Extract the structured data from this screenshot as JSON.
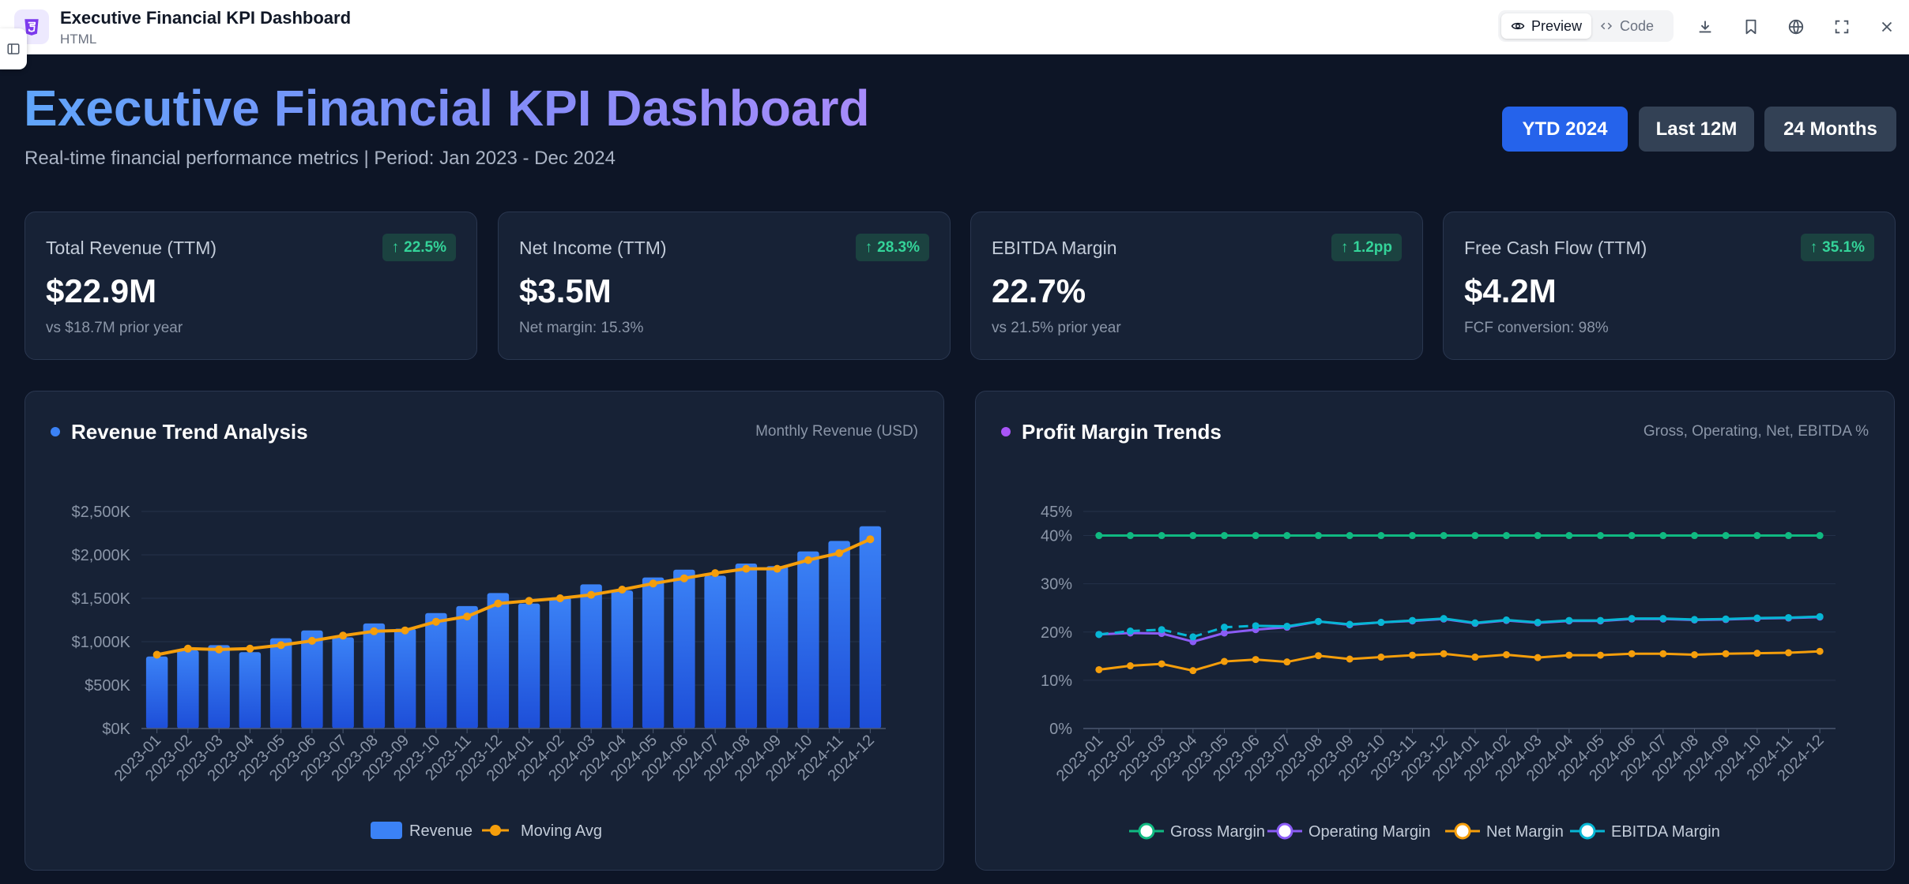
{
  "app": {
    "title": "Executive Financial KPI Dashboard",
    "subtitle": "HTML",
    "view_tabs": [
      {
        "label": "Preview",
        "active": true
      },
      {
        "label": "Code",
        "active": false
      }
    ],
    "tool_icons": [
      "download-icon",
      "bookmark-icon",
      "globe-icon",
      "fullscreen-icon",
      "close-icon"
    ]
  },
  "header": {
    "title": "Executive Financial KPI Dashboard",
    "subtitle": "Real-time financial performance metrics | Period: Jan 2023 - Dec 2024",
    "periods": [
      {
        "label": "YTD 2024",
        "active": true
      },
      {
        "label": "Last 12M",
        "active": false
      },
      {
        "label": "24 Months",
        "active": false
      }
    ]
  },
  "kpis": [
    {
      "label": "Total Revenue (TTM)",
      "value": "$22.9M",
      "change": "22.5%",
      "note": "vs $18.7M prior year"
    },
    {
      "label": "Net Income (TTM)",
      "value": "$3.5M",
      "change": "28.3%",
      "note": "Net margin: 15.3%"
    },
    {
      "label": "EBITDA Margin",
      "value": "22.7%",
      "change": "1.2pp",
      "note": "vs 21.5% prior year"
    },
    {
      "label": "Free Cash Flow (TTM)",
      "value": "$4.2M",
      "change": "35.1%",
      "note": "FCF conversion: 98%"
    }
  ],
  "colors": {
    "accent_blue": "#2563eb",
    "bar": "#3b82f6",
    "moving_avg": "#f59e0b",
    "gross": "#10b981",
    "operating": "#8b5cf6",
    "net": "#f59e0b",
    "ebitda": "#06b6d4",
    "positive": "#34d399"
  },
  "panels": {
    "revenue": {
      "title": "Revenue Trend Analysis",
      "subtitle": "Monthly Revenue (USD)"
    },
    "margins": {
      "title": "Profit Margin Trends",
      "subtitle": "Gross, Operating, Net, EBITDA %"
    }
  },
  "chart_data": [
    {
      "type": "bar",
      "title": "Revenue Trend Analysis",
      "subtitle": "Monthly Revenue (USD)",
      "categories": [
        "2023-01",
        "2023-02",
        "2023-03",
        "2023-04",
        "2023-05",
        "2023-06",
        "2023-07",
        "2023-08",
        "2023-09",
        "2023-10",
        "2023-11",
        "2023-12",
        "2024-01",
        "2024-02",
        "2024-03",
        "2024-04",
        "2024-05",
        "2024-06",
        "2024-07",
        "2024-08",
        "2024-09",
        "2024-10",
        "2024-11",
        "2024-12"
      ],
      "ylim": [
        0,
        2500
      ],
      "y_ticks": [
        0,
        500,
        1000,
        1500,
        2000,
        2500
      ],
      "y_tick_labels": [
        "$0K",
        "$500K",
        "$1,000K",
        "$1,500K",
        "$2,000K",
        "$2,500K"
      ],
      "legend_position": "bottom",
      "series": [
        {
          "name": "Revenue",
          "type": "bar",
          "values": [
            830,
            900,
            960,
            880,
            1040,
            1130,
            1050,
            1210,
            1150,
            1330,
            1410,
            1560,
            1440,
            1510,
            1660,
            1590,
            1740,
            1830,
            1760,
            1900,
            1870,
            2040,
            2160,
            2330
          ]
        },
        {
          "name": "Moving Avg",
          "type": "line",
          "values": [
            850,
            920,
            910,
            920,
            960,
            1010,
            1070,
            1120,
            1130,
            1230,
            1290,
            1440,
            1470,
            1500,
            1540,
            1600,
            1670,
            1730,
            1790,
            1840,
            1840,
            1940,
            2020,
            2180
          ]
        }
      ]
    },
    {
      "type": "line",
      "title": "Profit Margin Trends",
      "subtitle": "Gross, Operating, Net, EBITDA %",
      "categories": [
        "2023-01",
        "2023-02",
        "2023-03",
        "2023-04",
        "2023-05",
        "2023-06",
        "2023-07",
        "2023-08",
        "2023-09",
        "2023-10",
        "2023-11",
        "2023-12",
        "2024-01",
        "2024-02",
        "2024-03",
        "2024-04",
        "2024-05",
        "2024-06",
        "2024-07",
        "2024-08",
        "2024-09",
        "2024-10",
        "2024-11",
        "2024-12"
      ],
      "ylim": [
        0,
        45
      ],
      "y_ticks": [
        0,
        10,
        20,
        30,
        40,
        45
      ],
      "y_tick_labels": [
        "0%",
        "10%",
        "20%",
        "30%",
        "40%",
        "45%"
      ],
      "legend_position": "bottom",
      "series": [
        {
          "name": "Gross Margin",
          "values": [
            40,
            40,
            40,
            40,
            40,
            40,
            40,
            40,
            40,
            40,
            40,
            40,
            40,
            40,
            40,
            40,
            40,
            40,
            40,
            40,
            40,
            40,
            40,
            40
          ]
        },
        {
          "name": "Operating Margin",
          "values": [
            19.5,
            19.8,
            19.7,
            18,
            19.8,
            20.5,
            21,
            22.2,
            21.5,
            22,
            22.3,
            22.7,
            21.8,
            22.4,
            21.9,
            22.3,
            22.3,
            22.7,
            22.7,
            22.5,
            22.6,
            22.8,
            22.9,
            23.1
          ]
        },
        {
          "name": "Net Margin",
          "values": [
            12.2,
            13,
            13.4,
            12,
            13.9,
            14.3,
            13.8,
            15.1,
            14.4,
            14.8,
            15.2,
            15.5,
            14.8,
            15.3,
            14.7,
            15.2,
            15.2,
            15.5,
            15.5,
            15.3,
            15.5,
            15.6,
            15.7,
            16
          ]
        },
        {
          "name": "EBITDA Margin",
          "dashed_until": "2023-06",
          "values": [
            19.5,
            20.2,
            20.5,
            19,
            21,
            21.3,
            21.2,
            22.2,
            21.6,
            22,
            22.4,
            22.8,
            21.9,
            22.5,
            22,
            22.4,
            22.4,
            22.8,
            22.8,
            22.6,
            22.7,
            22.9,
            23,
            23.2
          ]
        }
      ]
    }
  ]
}
